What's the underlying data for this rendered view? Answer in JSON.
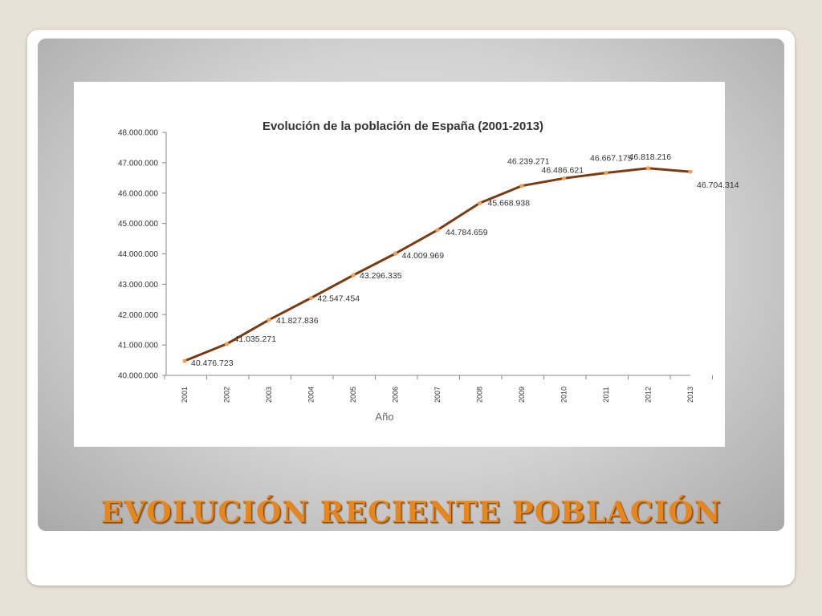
{
  "slide": {
    "title": "EVOLUCIÓN RECIENTE POBLACIÓN",
    "title_color": "#e7861c"
  },
  "chart_data": {
    "type": "line",
    "title": "Evolución de la población de España (2001-2013)",
    "xlabel": "Año",
    "ylabel": "",
    "x": [
      "2001",
      "2002",
      "2003",
      "2004",
      "2005",
      "2006",
      "2007",
      "2008",
      "2009",
      "2010",
      "2011",
      "2012",
      "2013"
    ],
    "series": [
      {
        "values": [
          40476723,
          41035271,
          41827836,
          42547454,
          43296335,
          44009969,
          44784659,
          45668938,
          46239271,
          46486621,
          46667175,
          46818216,
          46704314
        ],
        "labels": [
          "40.476.723",
          "41.035.271",
          "41.827.836",
          "42.547.454",
          "43.296.335",
          "44.009.969",
          "44.784.659",
          "45.668.938",
          "46.239.271",
          "46.486.621",
          "46.667.175",
          "46.818.216",
          "46.704.314"
        ],
        "color": "#7a3b12",
        "marker_color": "#f0a050"
      }
    ],
    "ylim": [
      40000000,
      48000000
    ],
    "yticks": [
      40000000,
      41000000,
      42000000,
      43000000,
      44000000,
      45000000,
      46000000,
      47000000,
      48000000
    ],
    "ytick_labels": [
      "40.000.000",
      "41.000.000",
      "42.000.000",
      "43.000.000",
      "44.000.000",
      "45.000.000",
      "46.000.000",
      "47.000.000",
      "48.000.000"
    ],
    "grid": false,
    "legend": "none"
  }
}
